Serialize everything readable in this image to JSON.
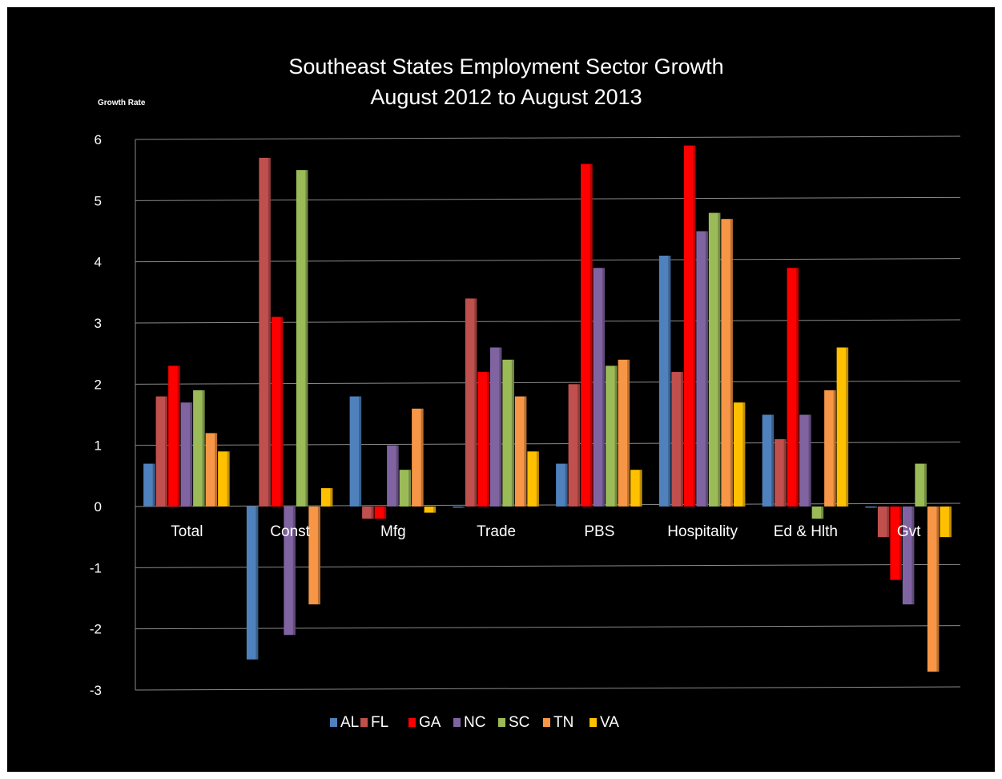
{
  "chart_data": {
    "type": "bar",
    "title": "Southeast States Employment Sector Growth",
    "subtitle": "August 2012 to August 2013",
    "ylabel": "Growth Rate",
    "xlabel": "",
    "ylim": [
      -3,
      6
    ],
    "yticks": [
      6,
      5,
      4,
      3,
      2,
      1,
      0,
      -1,
      -2,
      -3
    ],
    "grid": true,
    "legend_position": "bottom",
    "categories": [
      "Total",
      "Const",
      "Mfg",
      "Trade",
      "PBS",
      "Hospitality",
      "Ed & Hlth",
      "Gvt"
    ],
    "series": [
      {
        "name": "AL",
        "color": "#4f81bd",
        "values": [
          0.7,
          -2.5,
          1.8,
          0.0,
          0.7,
          4.1,
          1.5,
          0.0
        ]
      },
      {
        "name": "FL",
        "color": "#c0504d",
        "values": [
          1.8,
          5.7,
          -0.2,
          3.4,
          2.0,
          2.2,
          1.1,
          -0.5
        ]
      },
      {
        "name": "GA",
        "color": "#ff0000",
        "values": [
          2.3,
          3.1,
          -0.2,
          2.2,
          5.6,
          5.9,
          3.9,
          -1.2
        ]
      },
      {
        "name": "NC",
        "color": "#8064a2",
        "values": [
          1.7,
          -2.1,
          1.0,
          2.6,
          3.9,
          4.5,
          1.5,
          -1.6
        ]
      },
      {
        "name": "SC",
        "color": "#9bbb59",
        "values": [
          1.9,
          5.5,
          0.6,
          2.4,
          2.3,
          4.8,
          -0.2,
          0.7
        ]
      },
      {
        "name": "TN",
        "color": "#f79646",
        "values": [
          1.2,
          -1.6,
          1.6,
          1.8,
          2.4,
          4.7,
          1.9,
          -2.7
        ]
      },
      {
        "name": "VA",
        "color": "#ffc000",
        "values": [
          0.9,
          0.3,
          -0.1,
          0.9,
          0.6,
          1.7,
          2.6,
          -0.5
        ]
      }
    ]
  }
}
